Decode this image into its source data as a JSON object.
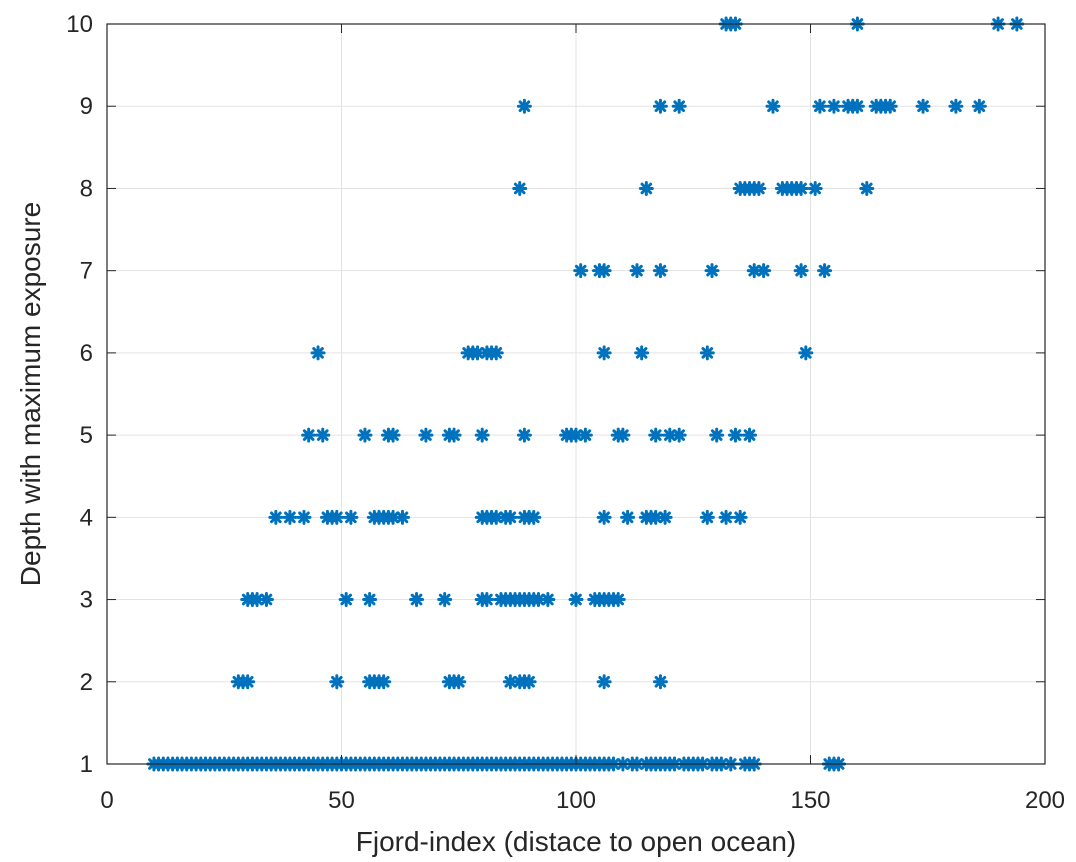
{
  "chart_data": {
    "type": "scatter",
    "title": "",
    "xlabel": "Fjord-index (distace to open ocean)",
    "ylabel": "Depth with maximum exposure",
    "xlim": [
      0,
      200
    ],
    "ylim": [
      1,
      10
    ],
    "xticks": [
      0,
      50,
      100,
      150,
      200
    ],
    "yticks": [
      1,
      2,
      3,
      4,
      5,
      6,
      7,
      8,
      9,
      10
    ],
    "grid": true,
    "marker": "asterisk",
    "color": "#0072BD",
    "series": [
      {
        "points": [
          [
            132,
            10
          ],
          [
            133,
            10
          ],
          [
            134,
            10
          ],
          [
            160,
            10
          ],
          [
            190,
            10
          ],
          [
            194,
            10
          ],
          [
            89,
            9
          ],
          [
            118,
            9
          ],
          [
            122,
            9
          ],
          [
            142,
            9
          ],
          [
            152,
            9
          ],
          [
            155,
            9
          ],
          [
            158,
            9
          ],
          [
            159,
            9
          ],
          [
            160,
            9
          ],
          [
            164,
            9
          ],
          [
            165,
            9
          ],
          [
            166,
            9
          ],
          [
            167,
            9
          ],
          [
            174,
            9
          ],
          [
            181,
            9
          ],
          [
            186,
            9
          ],
          [
            88,
            8
          ],
          [
            115,
            8
          ],
          [
            135,
            8
          ],
          [
            136,
            8
          ],
          [
            137,
            8
          ],
          [
            138,
            8
          ],
          [
            139,
            8
          ],
          [
            144,
            8
          ],
          [
            145,
            8
          ],
          [
            146,
            8
          ],
          [
            147,
            8
          ],
          [
            148,
            8
          ],
          [
            151,
            8
          ],
          [
            162,
            8
          ],
          [
            101,
            7
          ],
          [
            105,
            7
          ],
          [
            106,
            7
          ],
          [
            113,
            7
          ],
          [
            118,
            7
          ],
          [
            129,
            7
          ],
          [
            138,
            7
          ],
          [
            140,
            7
          ],
          [
            148,
            7
          ],
          [
            153,
            7
          ],
          [
            45,
            6
          ],
          [
            77,
            6
          ],
          [
            78,
            6
          ],
          [
            79,
            6
          ],
          [
            81,
            6
          ],
          [
            82,
            6
          ],
          [
            83,
            6
          ],
          [
            106,
            6
          ],
          [
            114,
            6
          ],
          [
            128,
            6
          ],
          [
            149,
            6
          ],
          [
            43,
            5
          ],
          [
            46,
            5
          ],
          [
            55,
            5
          ],
          [
            60,
            5
          ],
          [
            61,
            5
          ],
          [
            68,
            5
          ],
          [
            73,
            5
          ],
          [
            74,
            5
          ],
          [
            80,
            5
          ],
          [
            89,
            5
          ],
          [
            98,
            5
          ],
          [
            99,
            5
          ],
          [
            100,
            5
          ],
          [
            102,
            5
          ],
          [
            109,
            5
          ],
          [
            110,
            5
          ],
          [
            117,
            5
          ],
          [
            120,
            5
          ],
          [
            122,
            5
          ],
          [
            130,
            5
          ],
          [
            134,
            5
          ],
          [
            137,
            5
          ],
          [
            36,
            4
          ],
          [
            39,
            4
          ],
          [
            42,
            4
          ],
          [
            47,
            4
          ],
          [
            48,
            4
          ],
          [
            49,
            4
          ],
          [
            52,
            4
          ],
          [
            57,
            4
          ],
          [
            58,
            4
          ],
          [
            59,
            4
          ],
          [
            60,
            4
          ],
          [
            61,
            4
          ],
          [
            63,
            4
          ],
          [
            80,
            4
          ],
          [
            81,
            4
          ],
          [
            82,
            4
          ],
          [
            83,
            4
          ],
          [
            85,
            4
          ],
          [
            86,
            4
          ],
          [
            89,
            4
          ],
          [
            90,
            4
          ],
          [
            91,
            4
          ],
          [
            106,
            4
          ],
          [
            111,
            4
          ],
          [
            115,
            4
          ],
          [
            116,
            4
          ],
          [
            117,
            4
          ],
          [
            119,
            4
          ],
          [
            128,
            4
          ],
          [
            132,
            4
          ],
          [
            135,
            4
          ],
          [
            30,
            3
          ],
          [
            31,
            3
          ],
          [
            32,
            3
          ],
          [
            34,
            3
          ],
          [
            51,
            3
          ],
          [
            56,
            3
          ],
          [
            66,
            3
          ],
          [
            72,
            3
          ],
          [
            80,
            3
          ],
          [
            81,
            3
          ],
          [
            84,
            3
          ],
          [
            85,
            3
          ],
          [
            86,
            3
          ],
          [
            87,
            3
          ],
          [
            88,
            3
          ],
          [
            89,
            3
          ],
          [
            90,
            3
          ],
          [
            91,
            3
          ],
          [
            92,
            3
          ],
          [
            94,
            3
          ],
          [
            100,
            3
          ],
          [
            104,
            3
          ],
          [
            105,
            3
          ],
          [
            106,
            3
          ],
          [
            107,
            3
          ],
          [
            108,
            3
          ],
          [
            109,
            3
          ],
          [
            28,
            2
          ],
          [
            29,
            2
          ],
          [
            30,
            2
          ],
          [
            49,
            2
          ],
          [
            56,
            2
          ],
          [
            57,
            2
          ],
          [
            58,
            2
          ],
          [
            59,
            2
          ],
          [
            73,
            2
          ],
          [
            74,
            2
          ],
          [
            75,
            2
          ],
          [
            86,
            2
          ],
          [
            88,
            2
          ],
          [
            89,
            2
          ],
          [
            90,
            2
          ],
          [
            106,
            2
          ],
          [
            118,
            2
          ],
          [
            10,
            1
          ],
          [
            11,
            1
          ],
          [
            12,
            1
          ],
          [
            13,
            1
          ],
          [
            14,
            1
          ],
          [
            15,
            1
          ],
          [
            16,
            1
          ],
          [
            17,
            1
          ],
          [
            18,
            1
          ],
          [
            19,
            1
          ],
          [
            20,
            1
          ],
          [
            21,
            1
          ],
          [
            22,
            1
          ],
          [
            23,
            1
          ],
          [
            24,
            1
          ],
          [
            25,
            1
          ],
          [
            26,
            1
          ],
          [
            27,
            1
          ],
          [
            28,
            1
          ],
          [
            29,
            1
          ],
          [
            30,
            1
          ],
          [
            31,
            1
          ],
          [
            32,
            1
          ],
          [
            33,
            1
          ],
          [
            34,
            1
          ],
          [
            35,
            1
          ],
          [
            36,
            1
          ],
          [
            37,
            1
          ],
          [
            38,
            1
          ],
          [
            39,
            1
          ],
          [
            40,
            1
          ],
          [
            41,
            1
          ],
          [
            42,
            1
          ],
          [
            43,
            1
          ],
          [
            44,
            1
          ],
          [
            45,
            1
          ],
          [
            46,
            1
          ],
          [
            47,
            1
          ],
          [
            48,
            1
          ],
          [
            49,
            1
          ],
          [
            50,
            1
          ],
          [
            51,
            1
          ],
          [
            52,
            1
          ],
          [
            53,
            1
          ],
          [
            54,
            1
          ],
          [
            55,
            1
          ],
          [
            56,
            1
          ],
          [
            57,
            1
          ],
          [
            58,
            1
          ],
          [
            59,
            1
          ],
          [
            60,
            1
          ],
          [
            61,
            1
          ],
          [
            62,
            1
          ],
          [
            63,
            1
          ],
          [
            64,
            1
          ],
          [
            65,
            1
          ],
          [
            66,
            1
          ],
          [
            67,
            1
          ],
          [
            68,
            1
          ],
          [
            69,
            1
          ],
          [
            70,
            1
          ],
          [
            71,
            1
          ],
          [
            72,
            1
          ],
          [
            73,
            1
          ],
          [
            74,
            1
          ],
          [
            75,
            1
          ],
          [
            76,
            1
          ],
          [
            77,
            1
          ],
          [
            78,
            1
          ],
          [
            79,
            1
          ],
          [
            80,
            1
          ],
          [
            81,
            1
          ],
          [
            82,
            1
          ],
          [
            83,
            1
          ],
          [
            84,
            1
          ],
          [
            85,
            1
          ],
          [
            86,
            1
          ],
          [
            87,
            1
          ],
          [
            88,
            1
          ],
          [
            89,
            1
          ],
          [
            90,
            1
          ],
          [
            91,
            1
          ],
          [
            92,
            1
          ],
          [
            93,
            1
          ],
          [
            94,
            1
          ],
          [
            95,
            1
          ],
          [
            96,
            1
          ],
          [
            97,
            1
          ],
          [
            98,
            1
          ],
          [
            99,
            1
          ],
          [
            100,
            1
          ],
          [
            101,
            1
          ],
          [
            102,
            1
          ],
          [
            103,
            1
          ],
          [
            104,
            1
          ],
          [
            105,
            1
          ],
          [
            106,
            1
          ],
          [
            107,
            1
          ],
          [
            108,
            1
          ],
          [
            110,
            1
          ],
          [
            112,
            1
          ],
          [
            113,
            1
          ],
          [
            115,
            1
          ],
          [
            116,
            1
          ],
          [
            117,
            1
          ],
          [
            118,
            1
          ],
          [
            119,
            1
          ],
          [
            120,
            1
          ],
          [
            121,
            1
          ],
          [
            123,
            1
          ],
          [
            124,
            1
          ],
          [
            125,
            1
          ],
          [
            126,
            1
          ],
          [
            127,
            1
          ],
          [
            129,
            1
          ],
          [
            130,
            1
          ],
          [
            131,
            1
          ],
          [
            133,
            1
          ],
          [
            136,
            1
          ],
          [
            137,
            1
          ],
          [
            138,
            1
          ],
          [
            154,
            1
          ],
          [
            155,
            1
          ],
          [
            156,
            1
          ]
        ]
      }
    ]
  }
}
